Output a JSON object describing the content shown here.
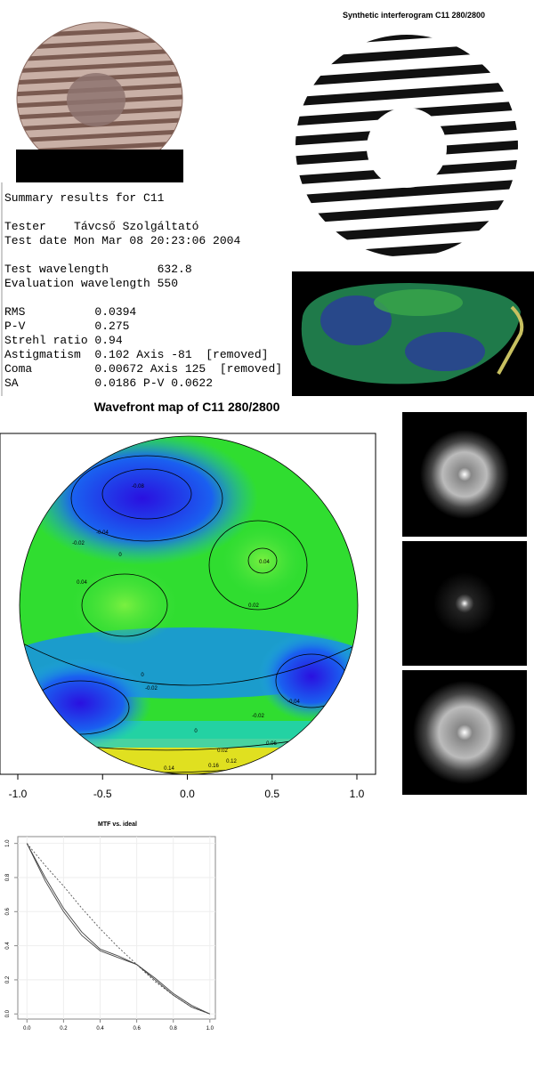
{
  "summary": {
    "lines": [
      "Summary results for C11",
      "Tester    Távcső Szolgáltató",
      "Test date Mon Mar 08 20:23:06 2004",
      "Test wavelength       632.8",
      "Evaluation wavelength 550",
      "RMS          0.0394",
      "P-V          0.275",
      "Strehl ratio 0.94",
      "Astigmatism  0.102 Axis -81  [removed]",
      "Coma         0.00672 Axis 125  [removed]",
      "SA           0.0186 P-V 0.0622"
    ]
  },
  "chart_data": [
    {
      "type": "interferogram",
      "title": "Synthetic interferogram C11 280/2800"
    },
    {
      "type": "contour",
      "title": "Wavefront map of C11 280/2800",
      "xlim": [
        -1.1,
        1.11
      ],
      "xticks": [
        {
          "value": -1,
          "label": "-1.0"
        },
        {
          "value": -0.5,
          "label": "-0.5"
        },
        {
          "value": 0,
          "label": "0.0"
        },
        {
          "value": 0.5,
          "label": "0.5"
        },
        {
          "value": 1,
          "label": "1.0"
        }
      ],
      "contour_labels": [
        -0.08,
        -0.04,
        -0.02,
        0,
        0.04,
        0.02,
        0.04,
        0,
        -0.02,
        -0.04,
        -0.02,
        0,
        0.02,
        0.06,
        0.12,
        0.14,
        0.16
      ]
    },
    {
      "type": "line",
      "title": "MTF vs. ideal",
      "x": [
        0,
        0.1,
        0.2,
        0.3,
        0.4,
        0.5,
        0.6,
        0.7,
        0.8,
        0.9,
        1.0
      ],
      "series": [
        {
          "color": "#555555",
          "dash": true,
          "values": [
            1,
            0.87,
            0.75,
            0.62,
            0.5,
            0.39,
            0.29,
            0.19,
            0.11,
            0.04,
            0
          ]
        },
        {
          "color": "#444444",
          "values": [
            1,
            0.8,
            0.62,
            0.48,
            0.38,
            0.34,
            0.29,
            0.2,
            0.11,
            0.04,
            0
          ]
        },
        {
          "color": "#444444",
          "values": [
            1,
            0.78,
            0.6,
            0.46,
            0.37,
            0.33,
            0.29,
            0.21,
            0.12,
            0.05,
            0
          ]
        }
      ],
      "xlim": [
        -0.05,
        1.03
      ],
      "ylim": [
        -0.03,
        1.04
      ],
      "xticks": [
        {
          "value": 0,
          "label": "0.0"
        },
        {
          "value": 0.2,
          "label": "0.2"
        },
        {
          "value": 0.4,
          "label": "0.4"
        },
        {
          "value": 0.6,
          "label": "0.6"
        },
        {
          "value": 0.8,
          "label": "0.8"
        },
        {
          "value": 1,
          "label": "1.0"
        }
      ],
      "yticks": [
        {
          "value": 0,
          "label": "0.0"
        },
        {
          "value": 0.2,
          "label": "0.2"
        },
        {
          "value": 0.4,
          "label": "0.4"
        },
        {
          "value": 0.6,
          "label": "0.6"
        },
        {
          "value": 0.8,
          "label": "0.8"
        },
        {
          "value": 1,
          "label": "1.0"
        }
      ]
    }
  ]
}
